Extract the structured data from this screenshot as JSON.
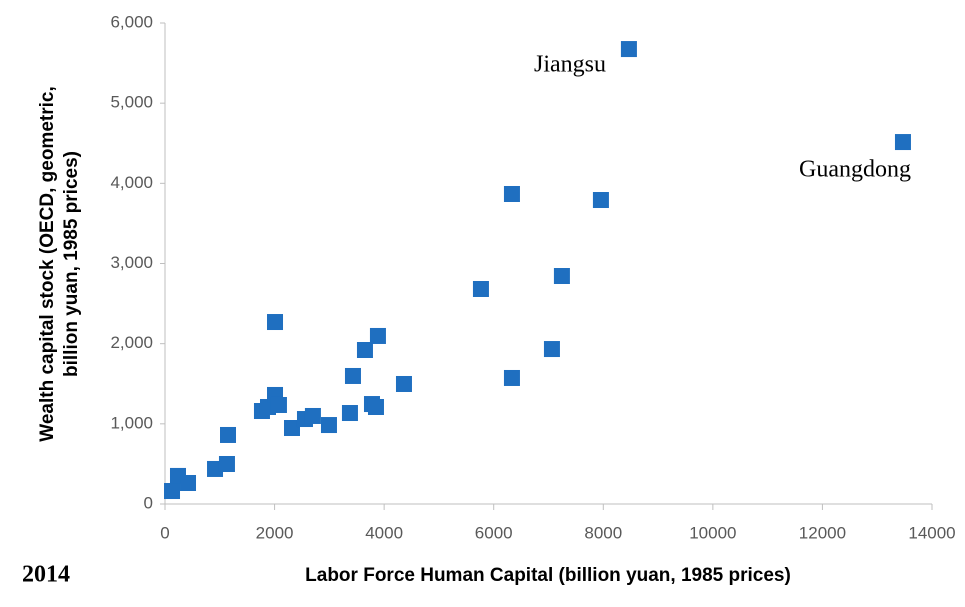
{
  "chart_data": {
    "type": "scatter",
    "xlabel": "Labor Force Human Capital (billion yuan, 1985 prices)",
    "ylabel": "Wealth capital stock (OECD, geometric, billion yuan, 1985 prices)",
    "year_label": "2014",
    "annotations": [
      "Jiangsu",
      "Guangdong"
    ],
    "color": "#1f6fc0",
    "x": [
      128,
      237,
      420,
      913,
      1131,
      1150,
      1770,
      1880,
      2008,
      2008,
      2080,
      2318,
      2555,
      2700,
      2993,
      3376,
      3431,
      3650,
      3778,
      3851,
      3887,
      4362,
      5767,
      6333,
      6333,
      7063,
      7245,
      7957,
      8468,
      13470
    ],
    "values": [
      162,
      350,
      262,
      437,
      499,
      861,
      1160,
      1210,
      2270,
      1360,
      1235,
      948,
      1060,
      1098,
      985,
      1135,
      1597,
      1921,
      1247,
      1210,
      2096,
      1497,
      2682,
      1572,
      3867,
      1933,
      2844,
      3792,
      5675,
      4515
    ],
    "xlim": [
      0,
      14000
    ],
    "xticks": [
      0,
      2000,
      4000,
      6000,
      8000,
      10000,
      12000,
      14000
    ],
    "ylim": [
      0,
      6000
    ],
    "yticks": [
      0,
      {
        "value": 1000,
        "label": "1,000"
      },
      {
        "value": 2000,
        "label": "2,000"
      },
      {
        "value": 3000,
        "label": "3,000"
      },
      {
        "value": 4000,
        "label": "4,000"
      },
      {
        "value": 5000,
        "label": "5,000"
      },
      {
        "value": 6000,
        "label": "6,000"
      }
    ],
    "grid": false
  }
}
